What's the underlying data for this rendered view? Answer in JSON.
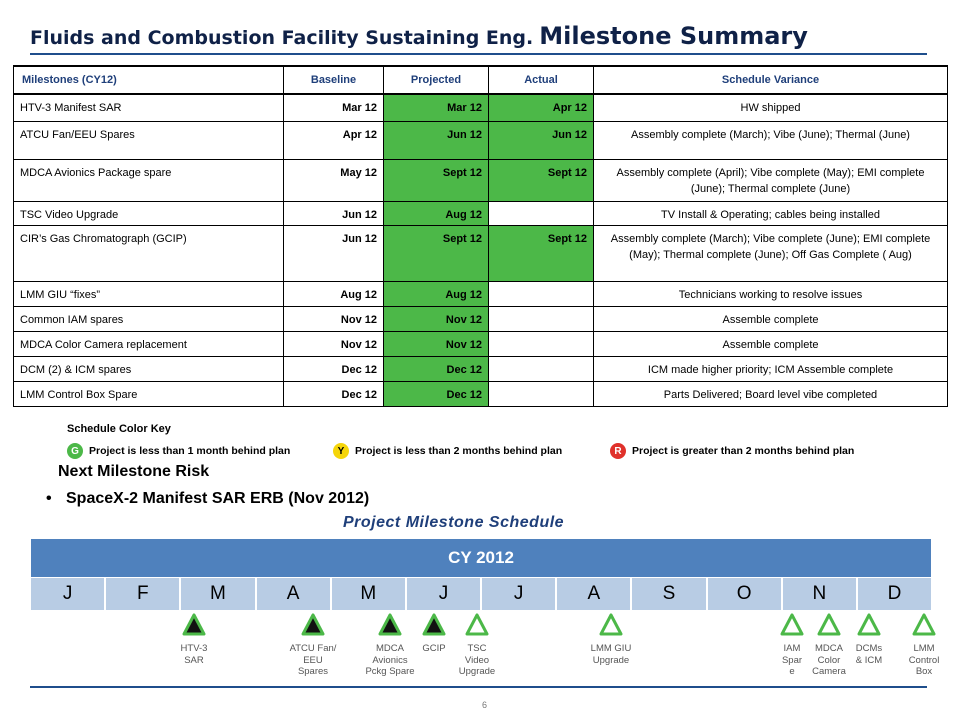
{
  "title": {
    "part1": "Fluids and Combustion Facility Sustaining Eng.",
    "part2": "Milestone Summary"
  },
  "table": {
    "headers": [
      "Milestones (CY12)",
      "Baseline",
      "Projected",
      "Actual",
      "Schedule Variance"
    ],
    "rows": [
      {
        "milestone": "HTV-3 Manifest SAR",
        "baseline": "Mar 12",
        "projected": "Mar 12",
        "actual": "Apr 12",
        "variance": "HW shipped"
      },
      {
        "milestone": "ATCU Fan/EEU Spares",
        "baseline": "Apr 12",
        "projected": "Jun 12",
        "actual": "Jun 12",
        "variance": "Assembly complete (March); Vibe (June); Thermal (June)"
      },
      {
        "milestone": "MDCA Avionics Package spare",
        "baseline": "May 12",
        "projected": "Sept 12",
        "actual": "Sept 12",
        "variance": "Assembly complete (April); Vibe complete (May); EMI complete (June); Thermal  complete (June)"
      },
      {
        "milestone": "TSC Video Upgrade",
        "baseline": "Jun 12",
        "projected": "Aug 12",
        "actual": "",
        "variance": "TV Install & Operating; cables being installed"
      },
      {
        "milestone": "CIR’s Gas Chromatograph (GCIP)",
        "baseline": "Jun 12",
        "projected": "Sept 12",
        "actual": "Sept 12",
        "variance": "Assembly complete (March); Vibe complete (June); EMI complete (May); Thermal  complete (June); Off Gas Complete ( Aug)"
      },
      {
        "milestone": "LMM GIU “fixes”",
        "baseline": "Aug 12",
        "projected": "Aug 12",
        "actual": "",
        "variance": "Technicians working to resolve issues"
      },
      {
        "milestone": "Common IAM spares",
        "baseline": "Nov 12",
        "projected": "Nov 12",
        "actual": "",
        "variance": "Assemble complete"
      },
      {
        "milestone": "MDCA Color Camera replacement",
        "baseline": "Nov 12",
        "projected": "Nov 12",
        "actual": "",
        "variance": "Assemble complete"
      },
      {
        "milestone": "DCM (2) & ICM spares",
        "baseline": "Dec 12",
        "projected": "Dec 12",
        "actual": "",
        "variance": "ICM made higher priority; ICM Assemble complete"
      },
      {
        "milestone": "LMM Control Box Spare",
        "baseline": "Dec 12",
        "projected": "Dec 12",
        "actual": "",
        "variance": "Parts Delivered; Board level vibe completed"
      }
    ]
  },
  "color_key": {
    "title": "Schedule Color Key",
    "items": [
      {
        "letter": "G",
        "text": "Project is less than 1 month behind plan",
        "color": "#4cb848"
      },
      {
        "letter": "Y",
        "text": "Project is less than 2 months behind plan",
        "color": "#f5d50a"
      },
      {
        "letter": "R",
        "text": "Project is greater than 2 months behind plan",
        "color": "#e0312b"
      }
    ]
  },
  "risk": {
    "heading": "Next Milestone Risk",
    "bullet_symbol": "•",
    "item": "SpaceX-2 Manifest SAR ERB (Nov 2012)"
  },
  "schedule": {
    "title": "Project Milestone Schedule",
    "year": "CY 2012",
    "months": [
      "J",
      "F",
      "M",
      "A",
      "M",
      "J",
      "J",
      "A",
      "S",
      "O",
      "N",
      "D"
    ],
    "milestones": [
      {
        "lines": [
          "HTV-3",
          "SAR"
        ],
        "status": "complete"
      },
      {
        "lines": [
          "ATCU Fan/",
          "EEU",
          "Spares"
        ],
        "status": "complete"
      },
      {
        "lines": [
          "MDCA",
          "Avionics",
          "Pckg Spare"
        ],
        "status": "complete"
      },
      {
        "lines": [
          "GCIP"
        ],
        "status": "complete"
      },
      {
        "lines": [
          "TSC",
          "Video",
          "Upgrade"
        ],
        "status": "open"
      },
      {
        "lines": [
          "LMM GIU",
          "Upgrade"
        ],
        "status": "open"
      },
      {
        "lines": [
          "IAM",
          "Spar",
          "e"
        ],
        "status": "open"
      },
      {
        "lines": [
          "MDCA",
          "Color",
          "Camera"
        ],
        "status": "open"
      },
      {
        "lines": [
          "DCMs",
          "& ICM"
        ],
        "status": "open"
      },
      {
        "lines": [
          "LMM",
          "Control",
          "Box"
        ],
        "status": "open"
      }
    ]
  },
  "colors": {
    "title": "#0f2147",
    "accent": "#1f4e8c",
    "cy_bar": "#4f81bd",
    "month_bg": "#b8cce4",
    "complete": "#4cb848",
    "triangle_fill_complete": "#111111"
  },
  "page_number": "6"
}
